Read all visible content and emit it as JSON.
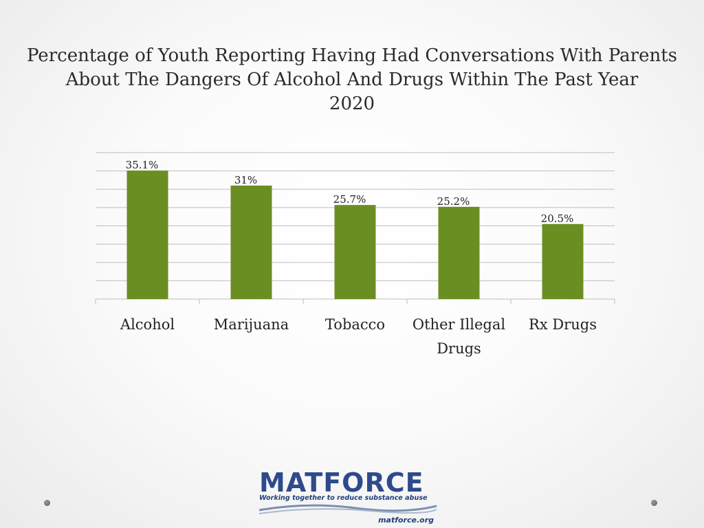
{
  "title_lines": [
    "Percentage of Youth Reporting Having Had Conversations With Parents",
    "About The Dangers Of Alcohol And Drugs Within The Past Year",
    "2020"
  ],
  "chart_data": {
    "type": "bar",
    "categories": [
      [
        "Alcohol"
      ],
      [
        "Marijuana"
      ],
      [
        "Tobacco"
      ],
      [
        "Other Illegal",
        "Drugs"
      ],
      [
        "Rx Drugs"
      ]
    ],
    "values": [
      35.1,
      31,
      25.7,
      25.2,
      20.5
    ],
    "data_labels": [
      "35.1%",
      "31%",
      "25.7%",
      "25.2%",
      "20.5%"
    ],
    "ylim": [
      0,
      40
    ],
    "grid_step": 5,
    "grid": true,
    "bar_color": "#6b8e23"
  },
  "logo": {
    "word": "MATFORCE",
    "tagline": "Working together to reduce substance abuse",
    "url": "matforce.org"
  }
}
